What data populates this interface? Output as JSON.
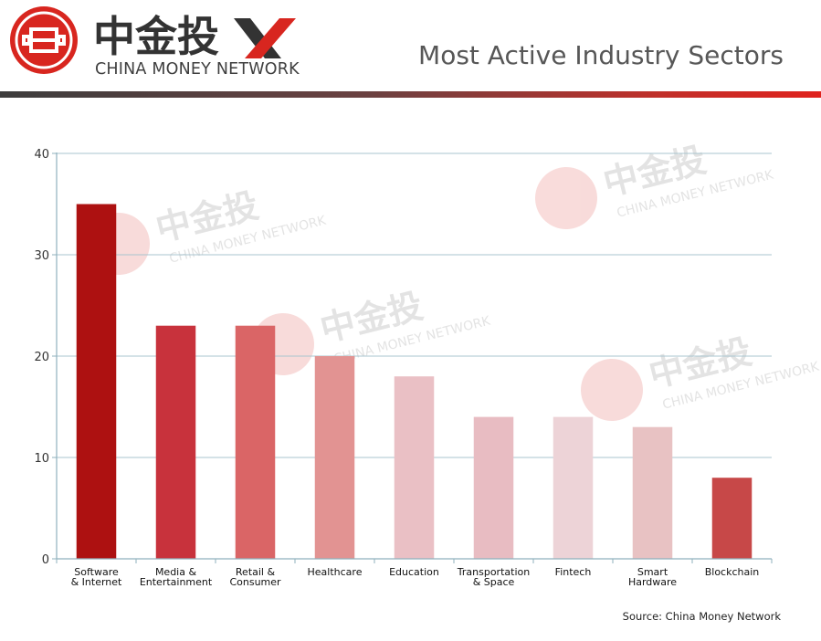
{
  "header": {
    "brand_cn": "中金投",
    "brand_en": "CHINA MONEY NETWORK",
    "title": "Most Active Industry Sectors"
  },
  "chart_data": {
    "type": "bar",
    "title": "Most Active Industry Sectors",
    "xlabel": "",
    "ylabel": "",
    "ylim": [
      0,
      40
    ],
    "yticks": [
      0,
      10,
      20,
      30,
      40
    ],
    "grid": true,
    "legend": "none",
    "categories": [
      [
        "Software",
        "& Internet"
      ],
      [
        "Media &",
        "Entertainment"
      ],
      [
        "Retail &",
        "Consumer"
      ],
      [
        "Healthcare"
      ],
      [
        "Education"
      ],
      [
        "Transportation",
        "& Space"
      ],
      [
        "Fintech"
      ],
      [
        "Smart",
        "Hardware"
      ],
      [
        "Blockchain"
      ]
    ],
    "values": [
      35,
      23,
      23,
      20,
      18,
      14,
      14,
      13,
      8
    ],
    "colors": [
      "#ad1111",
      "#c8323c",
      "#da6566",
      "#e29392",
      "#eac0c5",
      "#e8bcc2",
      "#edd3d7",
      "#e8c2c3",
      "#c74848"
    ]
  },
  "watermark": {
    "cn": "中金投",
    "en": "CHINA MONEY NETWORK"
  },
  "footer": {
    "source": "Source: China Money Network"
  }
}
